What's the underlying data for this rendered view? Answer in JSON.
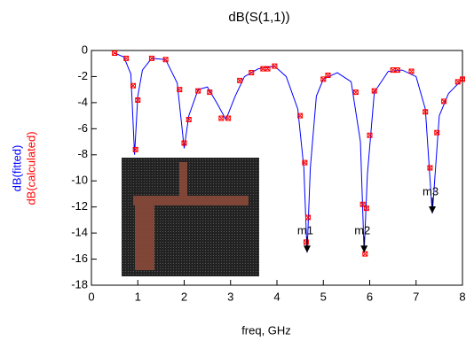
{
  "chart_data": {
    "type": "line",
    "title": "dB(S(1,1))",
    "x_label": "freq, GHz",
    "xlim": [
      0,
      8
    ],
    "xticks": [
      0,
      1,
      2,
      3,
      4,
      5,
      6,
      7,
      8
    ],
    "ylim": [
      -18,
      0
    ],
    "yticks": [
      0,
      -2,
      -4,
      -6,
      -8,
      -10,
      -12,
      -14,
      -16,
      -18
    ],
    "series": [
      {
        "name": "dB(fitted)",
        "color": "#0000ff",
        "style": "line",
        "x": [
          0.5,
          0.7,
          0.85,
          0.93,
          1.0,
          1.1,
          1.3,
          1.6,
          1.85,
          2.0,
          2.1,
          2.3,
          2.5,
          2.7,
          2.9,
          3.1,
          3.3,
          3.6,
          3.95,
          4.2,
          4.45,
          4.58,
          4.65,
          4.72,
          4.85,
          5.0,
          5.3,
          5.6,
          5.8,
          5.88,
          5.95,
          6.1,
          6.4,
          6.7,
          7.0,
          7.2,
          7.35,
          7.5,
          7.7,
          8.0
        ],
        "values": [
          -0.2,
          -0.5,
          -1.8,
          -8.0,
          -3.5,
          -1.5,
          -0.6,
          -0.7,
          -2.5,
          -7.5,
          -5.0,
          -3.0,
          -2.8,
          -4.0,
          -5.3,
          -3.5,
          -2.0,
          -1.4,
          -1.2,
          -2.0,
          -4.5,
          -9.0,
          -15.5,
          -9.0,
          -3.5,
          -2.2,
          -1.7,
          -2.4,
          -7.0,
          -15.5,
          -9.5,
          -3.2,
          -1.6,
          -1.5,
          -2.0,
          -4.5,
          -12.5,
          -5.0,
          -3.3,
          -2.2
        ]
      },
      {
        "name": "dB(calculated)",
        "color": "#ff0000",
        "style": "marker",
        "x": [
          0.5,
          0.75,
          0.9,
          0.95,
          1.0,
          1.3,
          1.6,
          1.9,
          2.0,
          2.1,
          2.3,
          2.55,
          2.8,
          2.95,
          3.2,
          3.45,
          3.7,
          3.8,
          3.95,
          4.5,
          4.6,
          4.63,
          4.67,
          5.0,
          5.1,
          5.7,
          5.85,
          5.9,
          5.93,
          6.0,
          6.1,
          6.5,
          6.6,
          6.9,
          7.2,
          7.3,
          7.45,
          7.6,
          7.9,
          8.0
        ],
        "values": [
          -0.2,
          -0.6,
          -2.7,
          -7.6,
          -3.8,
          -0.6,
          -0.7,
          -3.0,
          -7.1,
          -5.3,
          -3.1,
          -3.2,
          -5.2,
          -5.2,
          -2.3,
          -1.7,
          -1.4,
          -1.4,
          -1.2,
          -5.0,
          -8.6,
          -14.7,
          -12.8,
          -2.2,
          -1.9,
          -3.2,
          -11.8,
          -15.6,
          -12.1,
          -6.5,
          -3.1,
          -1.5,
          -1.5,
          -1.6,
          -4.7,
          -9.0,
          -6.3,
          -3.9,
          -2.4,
          -2.2
        ]
      }
    ],
    "markers": [
      {
        "label": "m1",
        "x": 4.65,
        "y": -15.5
      },
      {
        "label": "m2",
        "x": 5.88,
        "y": -15.5
      },
      {
        "label": "m3",
        "x": 7.35,
        "y": -12.5
      }
    ]
  }
}
